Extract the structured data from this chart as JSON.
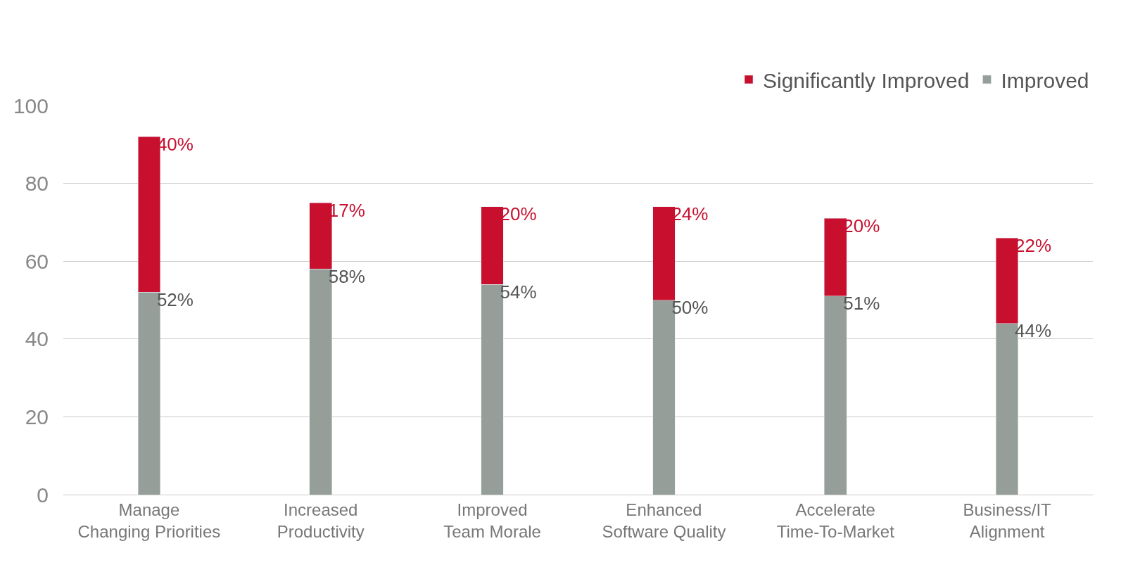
{
  "chart_data": {
    "type": "bar",
    "stacked": true,
    "categories": [
      "Manage\nChanging Priorities",
      "Increased\nProductivity",
      "Improved\nTeam Morale",
      "Enhanced\nSoftware Quality",
      "Accelerate\nTime-To-Market",
      "Business/IT\nAlignment"
    ],
    "series": [
      {
        "name": "Improved",
        "color": "#969e99",
        "values": [
          52,
          58,
          54,
          50,
          51,
          44
        ],
        "value_labels": [
          "52%",
          "58%",
          "54%",
          "50%",
          "51%",
          "44%"
        ]
      },
      {
        "name": "Significantly Improved",
        "color": "#c8102e",
        "values": [
          40,
          17,
          20,
          24,
          20,
          22
        ],
        "value_labels": [
          "40%",
          "17%",
          "20%",
          "24%",
          "20%",
          "22%"
        ]
      }
    ],
    "ylim": [
      0,
      100
    ],
    "yticks": [
      0,
      20,
      40,
      60,
      80,
      100
    ],
    "grid": "y",
    "legend": "top right"
  }
}
